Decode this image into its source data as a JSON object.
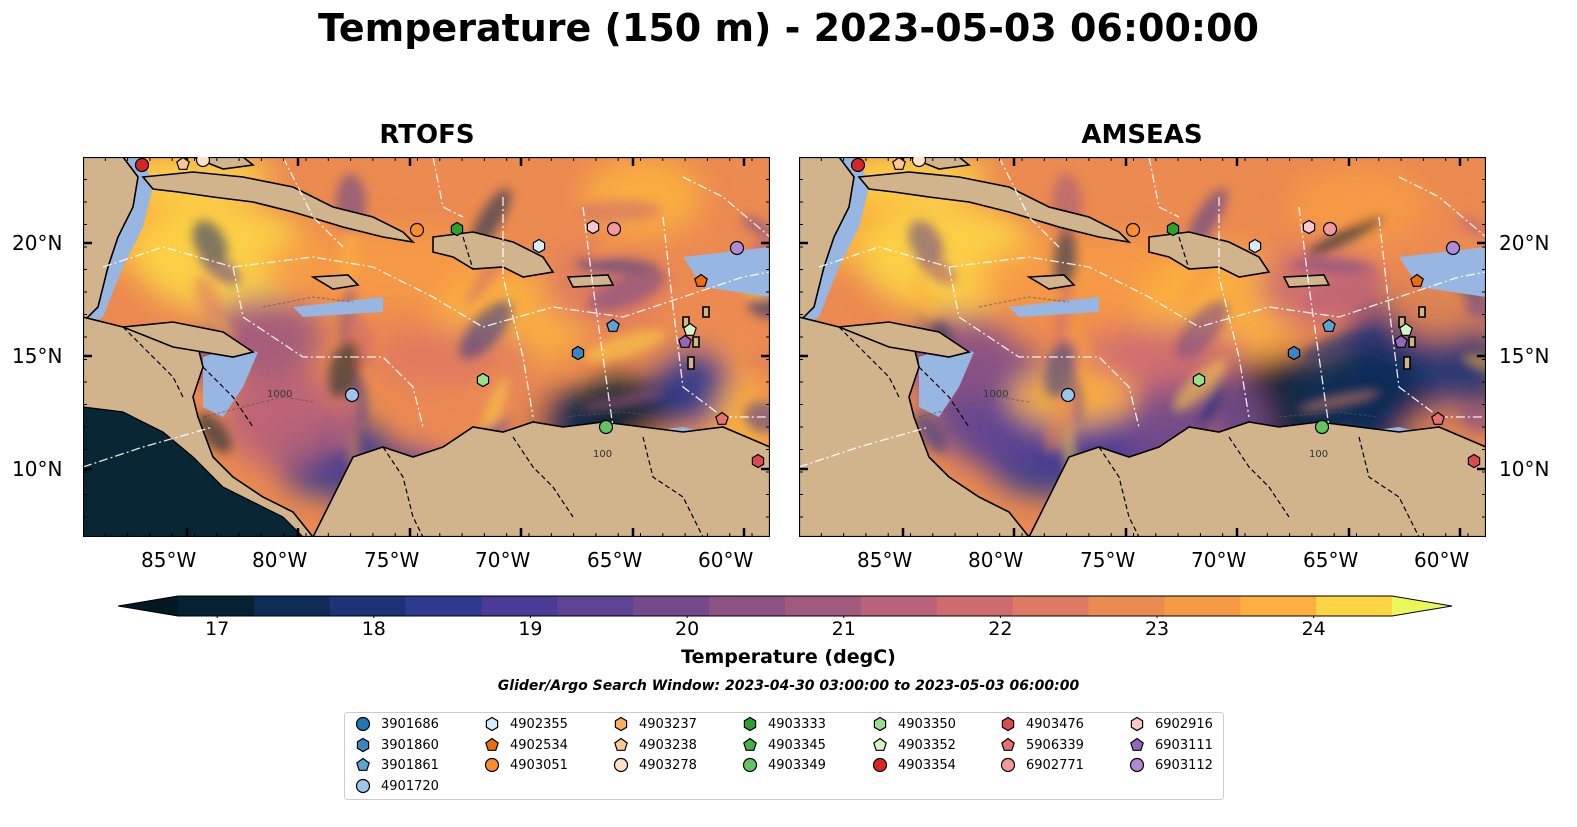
{
  "title": "Temperature (150 m) - 2023-05-03 06:00:00",
  "panels": [
    {
      "title": "RTOFS"
    },
    {
      "title": "AMSEAS"
    }
  ],
  "lon_ticks": [
    "85°W",
    "80°W",
    "75°W",
    "70°W",
    "65°W",
    "60°W"
  ],
  "lat_ticks": [
    "20°N",
    "15°N",
    "10°N"
  ],
  "contour_labels": [
    "100",
    "1000"
  ],
  "colorbar": {
    "label": "Temperature (degC)",
    "ticks": [
      "17",
      "18",
      "19",
      "20",
      "21",
      "22",
      "23",
      "24"
    ],
    "min": 16.75,
    "max": 24.5,
    "colors": [
      "#062131",
      "#0f2a57",
      "#1d3375",
      "#2d3a8d",
      "#4a3b97",
      "#5e4293",
      "#744a8b",
      "#8b5283",
      "#a15a7e",
      "#b9627a",
      "#cd6b71",
      "#de7a62",
      "#eb8a51",
      "#f69a44",
      "#fbb03f",
      "#fdd444"
    ],
    "extend_low_color": "#041823",
    "extend_high_color": "#eaf75b"
  },
  "search_window": "Glider/Argo Search Window: 2023-04-30 03:00:00 to 2023-05-03 06:00:00",
  "legend": [
    {
      "id": "3901686",
      "marker": "circle",
      "color": "#1f77b4"
    },
    {
      "id": "3901860",
      "marker": "hexagon",
      "color": "#3a86c4"
    },
    {
      "id": "3901861",
      "marker": "pentagon",
      "color": "#5aa5d6"
    },
    {
      "id": "4901720",
      "marker": "circle",
      "color": "#9cc7ea"
    },
    {
      "id": "4902355",
      "marker": "hexagon",
      "color": "#d6ecfb"
    },
    {
      "id": "4902534",
      "marker": "pentagon",
      "color": "#ef6c0a"
    },
    {
      "id": "4903051",
      "marker": "circle",
      "color": "#fb8d2d"
    },
    {
      "id": "4903237",
      "marker": "hexagon",
      "color": "#fdae61"
    },
    {
      "id": "4903238",
      "marker": "pentagon",
      "color": "#fdc793"
    },
    {
      "id": "4903278",
      "marker": "circle",
      "color": "#fde2c7"
    },
    {
      "id": "4903333",
      "marker": "hexagon",
      "color": "#2ca02c"
    },
    {
      "id": "4903345",
      "marker": "pentagon",
      "color": "#45b045"
    },
    {
      "id": "4903349",
      "marker": "circle",
      "color": "#63c463"
    },
    {
      "id": "4903350",
      "marker": "hexagon",
      "color": "#98df8a"
    },
    {
      "id": "4903352",
      "marker": "pentagon",
      "color": "#d4f5c8"
    },
    {
      "id": "4903354",
      "marker": "circle",
      "color": "#d62728"
    },
    {
      "id": "4903476",
      "marker": "hexagon",
      "color": "#dc4a4b"
    },
    {
      "id": "5906339",
      "marker": "pentagon",
      "color": "#e8706e"
    },
    {
      "id": "6902771",
      "marker": "circle",
      "color": "#f29a9a"
    },
    {
      "id": "6902916",
      "marker": "hexagon",
      "color": "#fac8c8"
    },
    {
      "id": "6903111",
      "marker": "pentagon",
      "color": "#9467bd"
    },
    {
      "id": "6903112",
      "marker": "circle",
      "color": "#b08ad6"
    }
  ],
  "colors": {
    "land": "#d2b48c",
    "shelf": "#97b6e1",
    "coast": "#000000"
  }
}
